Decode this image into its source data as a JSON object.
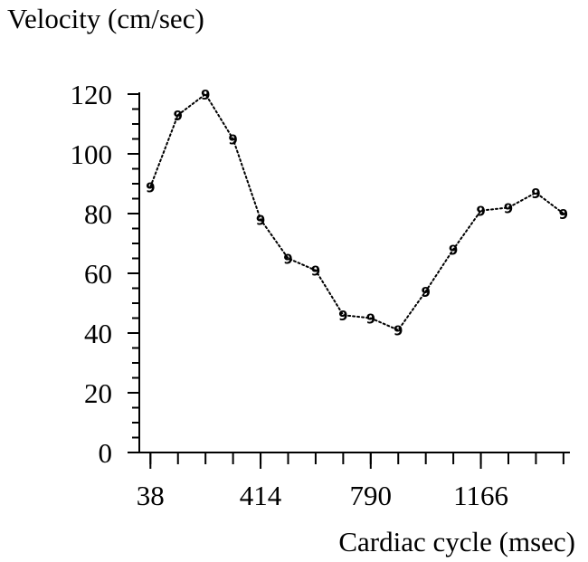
{
  "chart_data": {
    "type": "line",
    "title": "",
    "ylabel": "Velocity (cm/sec)",
    "xlabel": "Cardiac cycle (msec)",
    "marker_symbol": "9",
    "x": [
      38,
      132,
      226,
      320,
      414,
      508,
      602,
      696,
      790,
      884,
      978,
      1072,
      1166,
      1260,
      1354,
      1448
    ],
    "values": [
      89,
      113,
      120,
      105,
      78,
      65,
      61,
      46,
      45,
      41,
      54,
      68,
      81,
      82,
      87,
      80
    ],
    "xlim": [
      0,
      1470
    ],
    "ylim": [
      0,
      120
    ],
    "x_ticks": [
      38,
      414,
      790,
      1166
    ],
    "x_tick_labels": [
      "38",
      "414",
      "790",
      "1166"
    ],
    "y_ticks": [
      0,
      20,
      40,
      60,
      80,
      100,
      120
    ],
    "y_tick_labels": [
      "0",
      "20",
      "40",
      "60",
      "80",
      "100",
      "120"
    ],
    "grid": false,
    "line_style": "dotted",
    "colors": {
      "line": "#000000",
      "axis": "#000000",
      "text": "#000000"
    }
  }
}
